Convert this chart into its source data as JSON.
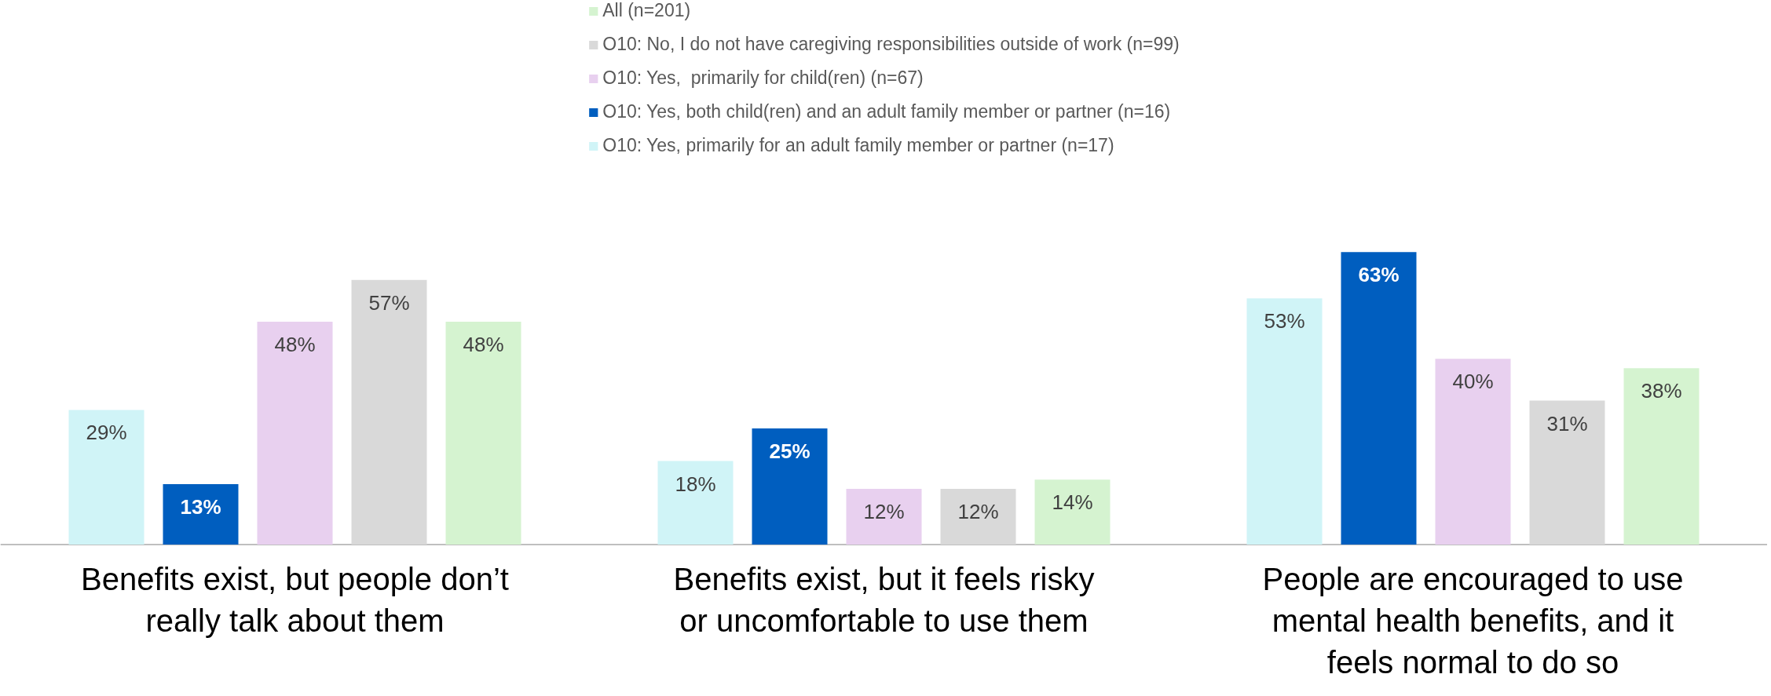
{
  "chart_data": {
    "type": "bar",
    "categories": [
      "Benefits exist, but people don’t really talk about them",
      "Benefits exist, but it feels risky or uncomfortable to use them",
      "People are encouraged to use mental health benefits, and it feels normal to do so"
    ],
    "series": [
      {
        "name": "O10: Yes, primarily for an adult family member or partner (n=17)",
        "color": "#d0f4f7",
        "values": [
          29,
          18,
          53
        ],
        "value_labels": [
          "29%",
          "18%",
          "53%"
        ]
      },
      {
        "name": "O10: Yes, both child(ren) and an adult family member or partner (n=16)",
        "color": "#005ebf",
        "values": [
          13,
          25,
          63
        ],
        "value_labels": [
          "13%",
          "25%",
          "63%"
        ]
      },
      {
        "name": "O10: Yes,  primarily for child(ren) (n=67)",
        "color": "#e8d0ef",
        "values": [
          48,
          12,
          40
        ],
        "value_labels": [
          "48%",
          "12%",
          "40%"
        ]
      },
      {
        "name": "O10: No, I do not have caregiving responsibilities outside of work (n=99)",
        "color": "#d9d9d9",
        "values": [
          57,
          12,
          31
        ],
        "value_labels": [
          "57%",
          "12%",
          "31%"
        ]
      },
      {
        "name": "All (n=201)",
        "color": "#d5f3d0",
        "values": [
          48,
          14,
          38
        ],
        "value_labels": [
          "48%",
          "14%",
          "38%"
        ]
      }
    ],
    "grid": false,
    "legend": "top"
  }
}
